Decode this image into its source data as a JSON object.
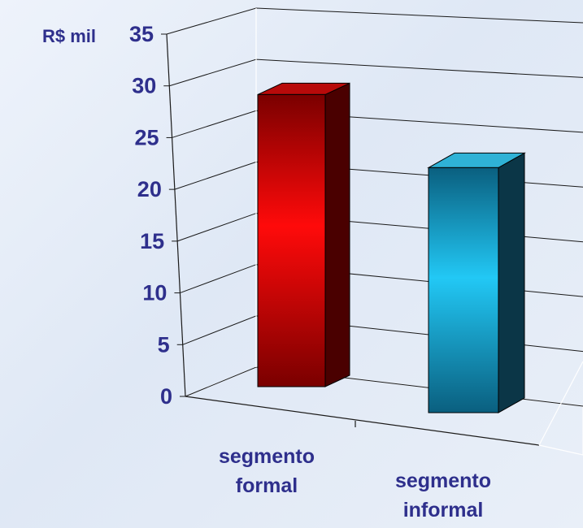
{
  "chart_data": {
    "type": "bar",
    "ylabel": "R$ mil",
    "ylim": [
      0,
      35
    ],
    "yticks": [
      "0",
      "5",
      "10",
      "15",
      "20",
      "25",
      "30",
      "35"
    ],
    "categories": [
      {
        "lines": [
          "segmento",
          "formal"
        ]
      },
      {
        "lines": [
          "segmento",
          "informal"
        ]
      }
    ],
    "values": [
      31,
      26
    ],
    "colors": [
      "#ff0a0a",
      "#22c8f5"
    ],
    "grid": true,
    "legend": "none"
  }
}
